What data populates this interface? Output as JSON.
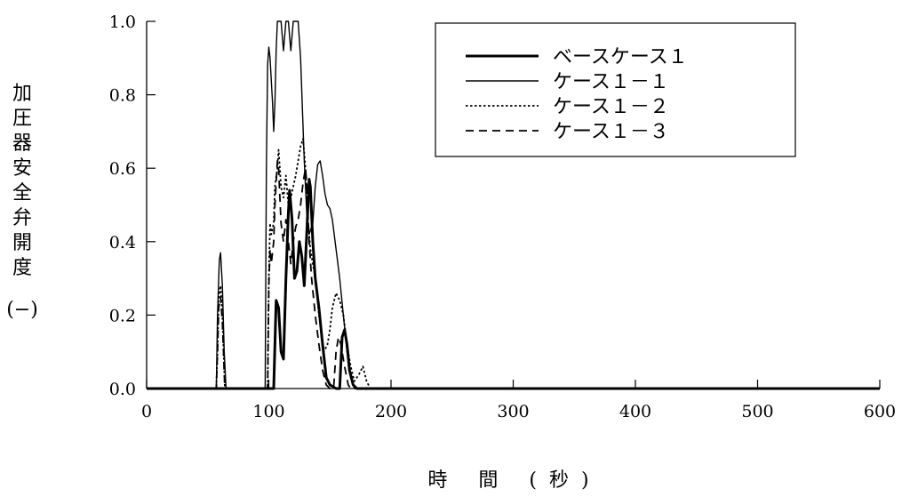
{
  "chart_data": {
    "type": "line",
    "title": "",
    "xlabel": "時 間 (秒)",
    "ylabel": "加圧器安全弁開度",
    "ylabel_unit": "(−)",
    "xlim": [
      0,
      600
    ],
    "ylim": [
      0,
      1.0
    ],
    "x_ticks": [
      "0",
      "100",
      "200",
      "300",
      "400",
      "500",
      "600"
    ],
    "y_ticks": [
      "0.0",
      "0.2",
      "0.4",
      "0.6",
      "0.8",
      "1.0"
    ],
    "grid": false,
    "legend_position": "top-right",
    "series": [
      {
        "name": "ベースケース１",
        "style": "thick-solid",
        "points": [
          [
            0,
            0
          ],
          [
            104,
            0
          ],
          [
            105,
            0.12
          ],
          [
            106,
            0.24
          ],
          [
            108,
            0.22
          ],
          [
            110,
            0.1
          ],
          [
            112,
            0.08
          ],
          [
            114,
            0.3
          ],
          [
            116,
            0.48
          ],
          [
            117,
            0.54
          ],
          [
            119,
            0.46
          ],
          [
            121,
            0.3
          ],
          [
            123,
            0.32
          ],
          [
            125,
            0.4
          ],
          [
            127,
            0.36
          ],
          [
            129,
            0.28
          ],
          [
            131,
            0.42
          ],
          [
            133,
            0.57
          ],
          [
            134,
            0.55
          ],
          [
            136,
            0.4
          ],
          [
            138,
            0.3
          ],
          [
            141,
            0.22
          ],
          [
            144,
            0.12
          ],
          [
            147,
            0.03
          ],
          [
            150,
            0.01
          ],
          [
            155,
            0
          ],
          [
            158,
            0
          ],
          [
            160,
            0.14
          ],
          [
            162,
            0.16
          ],
          [
            164,
            0.12
          ],
          [
            166,
            0.05
          ],
          [
            169,
            0.01
          ],
          [
            172,
            0
          ],
          [
            600,
            0
          ]
        ]
      },
      {
        "name": "ケース１－１",
        "style": "thin-solid",
        "points": [
          [
            0,
            0
          ],
          [
            57,
            0
          ],
          [
            58,
            0.2
          ],
          [
            59.5,
            0.35
          ],
          [
            60.5,
            0.37
          ],
          [
            62,
            0.28
          ],
          [
            63.5,
            0.1
          ],
          [
            65,
            0
          ],
          [
            97,
            0
          ],
          [
            98,
            0.6
          ],
          [
            99,
            0.88
          ],
          [
            100,
            0.93
          ],
          [
            101,
            0.9
          ],
          [
            103,
            0.78
          ],
          [
            104,
            0.7
          ],
          [
            105,
            0.78
          ],
          [
            106,
            0.92
          ],
          [
            107,
            1.0
          ],
          [
            110,
            1.0
          ],
          [
            112,
            0.92
          ],
          [
            114,
            1.0
          ],
          [
            116,
            1.0
          ],
          [
            118,
            0.92
          ],
          [
            120,
            1.0
          ],
          [
            124,
            1.0
          ],
          [
            126,
            0.9
          ],
          [
            129,
            0.62
          ],
          [
            131,
            0.48
          ],
          [
            133,
            0.42
          ],
          [
            136,
            0.45
          ],
          [
            138,
            0.55
          ],
          [
            140,
            0.61
          ],
          [
            142,
            0.62
          ],
          [
            144,
            0.58
          ],
          [
            146,
            0.53
          ],
          [
            148,
            0.5
          ],
          [
            150,
            0.49
          ],
          [
            152,
            0.46
          ],
          [
            155,
            0.38
          ],
          [
            158,
            0.3
          ],
          [
            161,
            0.2
          ],
          [
            164,
            0.1
          ],
          [
            167,
            0.03
          ],
          [
            170,
            0
          ],
          [
            600,
            0
          ]
        ]
      },
      {
        "name": "ケース１－２",
        "style": "dotted",
        "points": [
          [
            0,
            0
          ],
          [
            57,
            0
          ],
          [
            58,
            0.1
          ],
          [
            59,
            0.25
          ],
          [
            60.5,
            0.28
          ],
          [
            62,
            0.2
          ],
          [
            64,
            0
          ],
          [
            99,
            0
          ],
          [
            100,
            0.3
          ],
          [
            101,
            0.45
          ],
          [
            102,
            0.42
          ],
          [
            104,
            0.45
          ],
          [
            105,
            0.55
          ],
          [
            107,
            0.6
          ],
          [
            108,
            0.65
          ],
          [
            110,
            0.55
          ],
          [
            112,
            0.52
          ],
          [
            114,
            0.58
          ],
          [
            116,
            0.5
          ],
          [
            118,
            0.52
          ],
          [
            120,
            0.55
          ],
          [
            122,
            0.58
          ],
          [
            124,
            0.62
          ],
          [
            126,
            0.66
          ],
          [
            128,
            0.68
          ],
          [
            130,
            0.6
          ],
          [
            132,
            0.46
          ],
          [
            134,
            0.38
          ],
          [
            136,
            0.34
          ],
          [
            139,
            0.28
          ],
          [
            141,
            0.2
          ],
          [
            143,
            0.16
          ],
          [
            145,
            0.1
          ],
          [
            148,
            0.12
          ],
          [
            150,
            0.16
          ],
          [
            152,
            0.22
          ],
          [
            155,
            0.26
          ],
          [
            158,
            0.24
          ],
          [
            161,
            0.2
          ],
          [
            164,
            0.12
          ],
          [
            167,
            0.06
          ],
          [
            170,
            0.02
          ],
          [
            174,
            0.04
          ],
          [
            177,
            0.06
          ],
          [
            180,
            0.02
          ],
          [
            183,
            0
          ],
          [
            600,
            0
          ]
        ]
      },
      {
        "name": "ケース１－３",
        "style": "dashed",
        "points": [
          [
            0,
            0
          ],
          [
            57,
            0
          ],
          [
            58,
            0.1
          ],
          [
            59,
            0.22
          ],
          [
            60.5,
            0.25
          ],
          [
            62,
            0.18
          ],
          [
            64,
            0
          ],
          [
            99,
            0
          ],
          [
            100,
            0.28
          ],
          [
            101,
            0.38
          ],
          [
            102,
            0.34
          ],
          [
            104,
            0.4
          ],
          [
            105,
            0.5
          ],
          [
            107,
            0.62
          ],
          [
            108,
            0.6
          ],
          [
            110,
            0.45
          ],
          [
            112,
            0.4
          ],
          [
            114,
            0.46
          ],
          [
            116,
            0.4
          ],
          [
            118,
            0.34
          ],
          [
            120,
            0.4
          ],
          [
            122,
            0.44
          ],
          [
            124,
            0.46
          ],
          [
            126,
            0.5
          ],
          [
            128,
            0.56
          ],
          [
            130,
            0.6
          ],
          [
            131,
            0.56
          ],
          [
            133,
            0.4
          ],
          [
            135,
            0.3
          ],
          [
            138,
            0.2
          ],
          [
            141,
            0.12
          ],
          [
            144,
            0.05
          ],
          [
            147,
            0.01
          ],
          [
            150,
            0
          ],
          [
            153,
            0
          ],
          [
            155,
            0.1
          ],
          [
            157,
            0.14
          ],
          [
            159,
            0.12
          ],
          [
            162,
            0.06
          ],
          [
            165,
            0.01
          ],
          [
            167,
            0
          ],
          [
            600,
            0
          ]
        ]
      }
    ]
  }
}
